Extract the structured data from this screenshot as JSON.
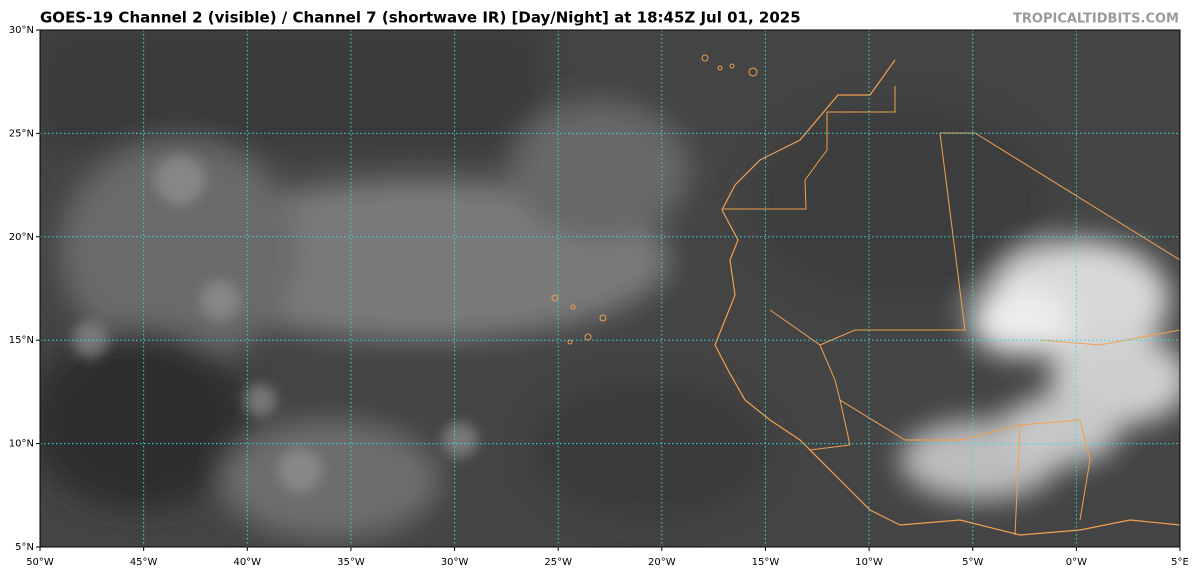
{
  "map": {
    "title": "GOES-19 Channel 2 (visible) / Channel 7 (shortwave IR) [Day/Night] at 18:45Z Jul 01, 2025",
    "credit": "TROPICALTIDBITS.COM",
    "lon_labels": [
      "50°W",
      "45°W",
      "40°W",
      "35°W",
      "30°W",
      "25°W",
      "20°W",
      "15°W",
      "10°W",
      "5°W",
      "0°W",
      "5°E"
    ],
    "lat_labels": [
      "5°N",
      "10°N",
      "15°N",
      "20°N",
      "25°N",
      "30°N"
    ]
  }
}
